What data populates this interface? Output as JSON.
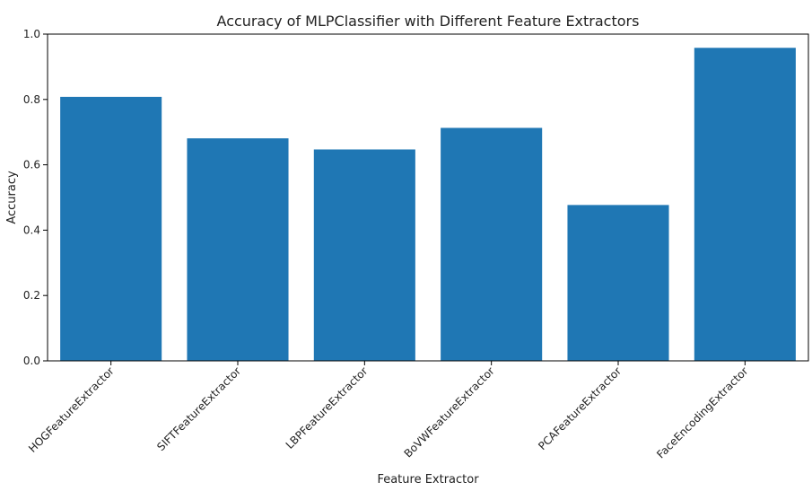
{
  "chart_data": {
    "type": "bar",
    "title": "Accuracy of MLPClassifier with Different Feature Extractors",
    "xlabel": "Feature Extractor",
    "ylabel": "Accuracy",
    "categories": [
      "HOGFeatureExtractor",
      "SIFTFeatureExtractor",
      "LBPFeatureExtractor",
      "BoVWFeatureExtractor",
      "PCAFeatureExtractor",
      "FaceEncodingExtractor"
    ],
    "values": [
      0.808,
      0.681,
      0.647,
      0.713,
      0.477,
      0.958
    ],
    "ylim": [
      0,
      1.0
    ],
    "yticks": [
      "0.0",
      "0.2",
      "0.4",
      "0.6",
      "0.8",
      "1.0"
    ],
    "ytick_values": [
      0,
      0.2,
      0.4,
      0.6,
      0.8,
      1.0
    ],
    "grid": false,
    "bar_color": "#1f77b4"
  }
}
